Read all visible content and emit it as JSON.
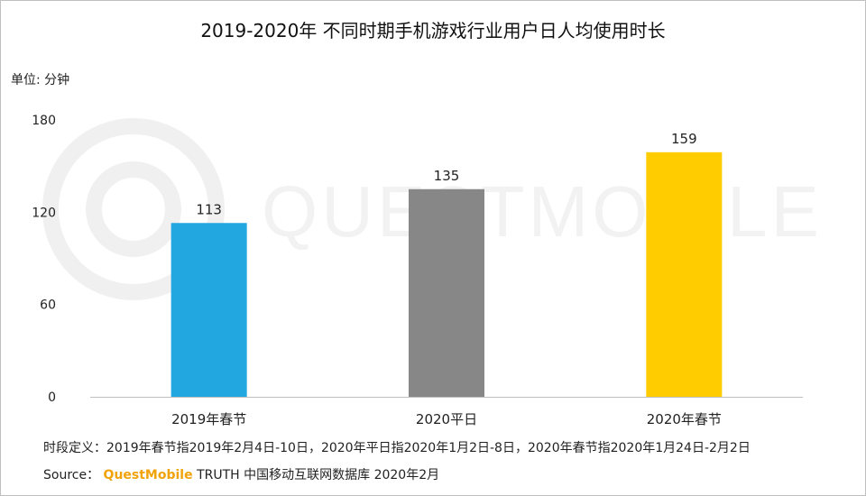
{
  "title": "2019-2020年 不同时期手机游戏行业用户日人均使用时长",
  "unit_label": "单位: 分钟",
  "watermark_text": "QUESTMOBILE",
  "note": "时段定义：2019年春节指2019年2月4日-10日，2020年平日指2020年1月2日-8日，2020年春节指2020年1月24日-2月2日",
  "source": {
    "prefix": "Source：",
    "brand": "QuestMobile",
    "rest": "TRUTH 中国移动互联网数据库 2020年2月"
  },
  "chart_data": {
    "type": "bar",
    "categories": [
      "2019年春节",
      "2020平日",
      "2020年春节"
    ],
    "values": [
      113,
      135,
      159
    ],
    "colors": [
      "#22a7e0",
      "#878787",
      "#ffcc00"
    ],
    "ylim": [
      0,
      180
    ],
    "yticks": [
      0,
      60,
      120,
      180
    ],
    "grid": false,
    "data_labels": true
  }
}
